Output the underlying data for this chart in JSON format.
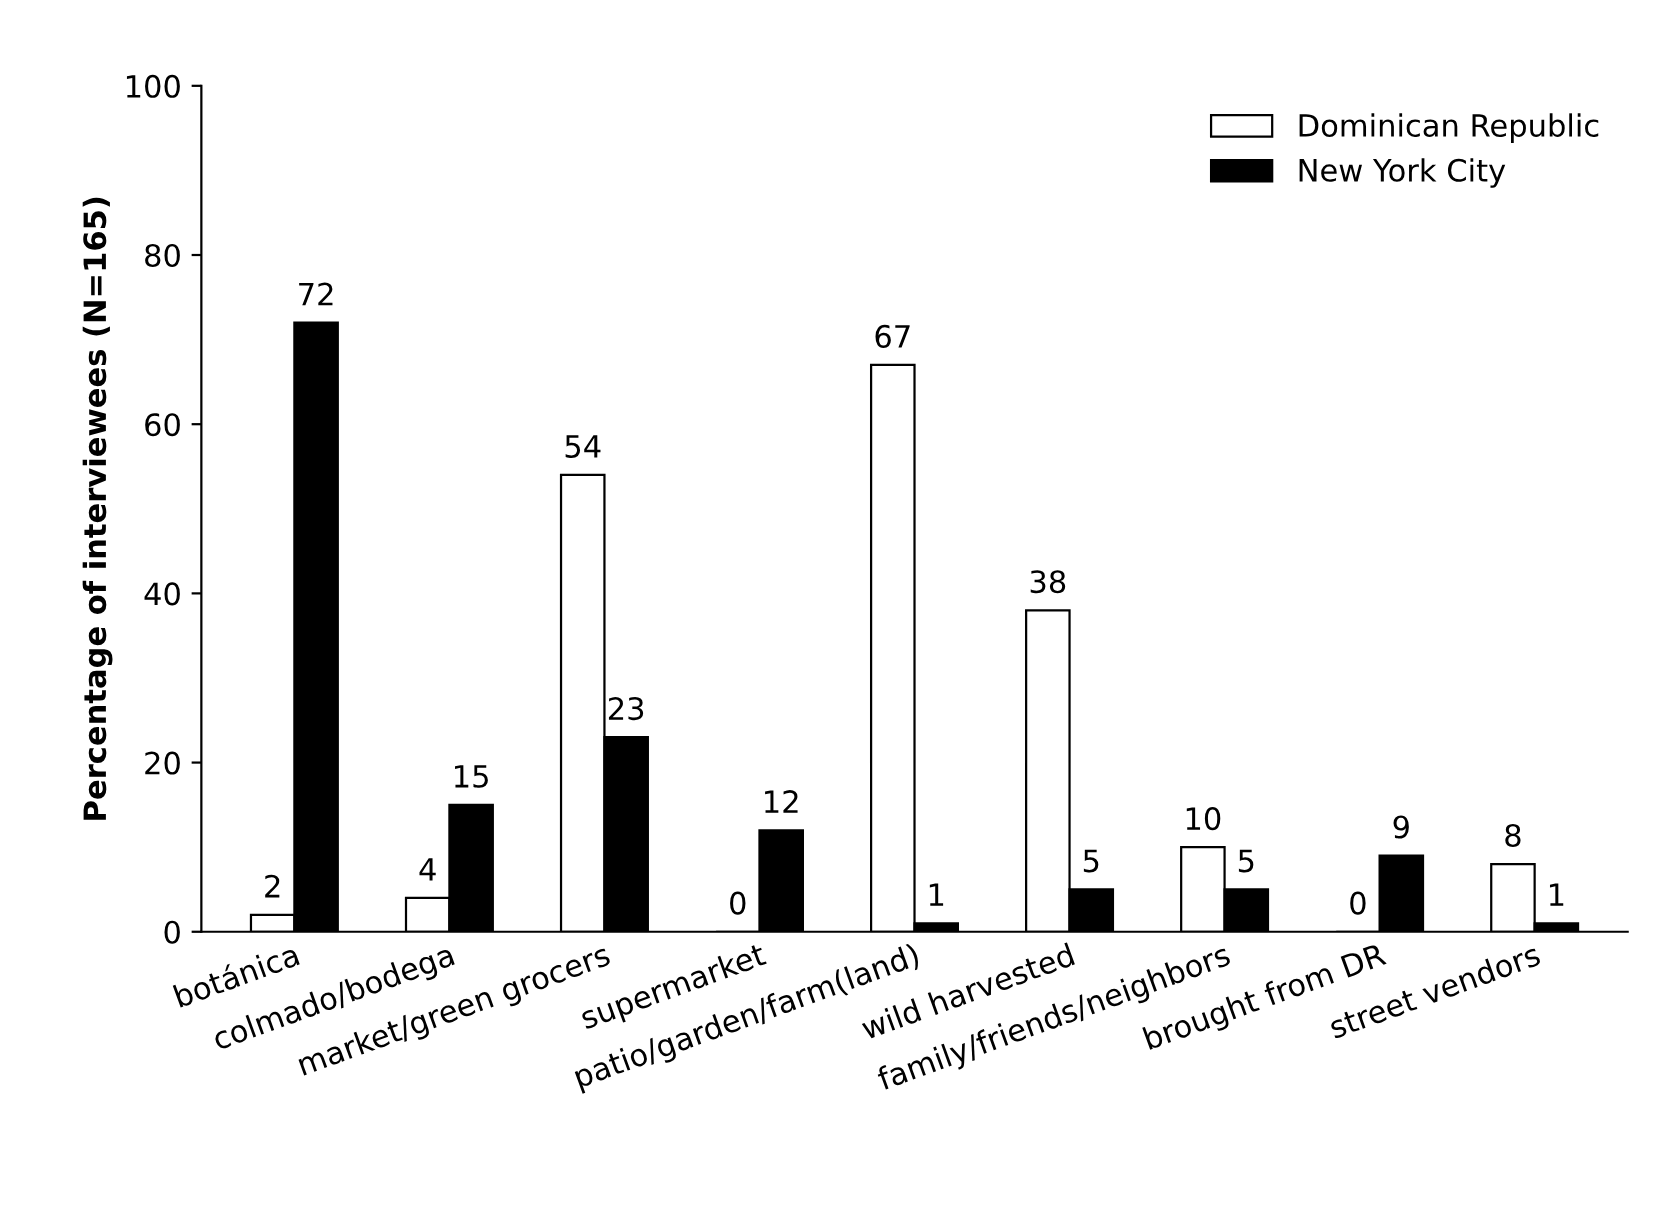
{
  "chart_data": {
    "type": "bar",
    "ylabel": "Percentage of interviewees (N=165)",
    "categories": [
      "botánica",
      "colmado/bodega",
      "market/green grocers",
      "supermarket",
      "patio/garden/farm(land)",
      "wild harvested",
      "family/friends/neighbors",
      "brought from DR",
      "street vendors"
    ],
    "series": [
      {
        "name": "Dominican Republic",
        "color": "#ffffff",
        "values": [
          2,
          4,
          54,
          0,
          67,
          38,
          10,
          0,
          8
        ]
      },
      {
        "name": "New York City",
        "color": "#000000",
        "values": [
          72,
          15,
          23,
          12,
          1,
          5,
          5,
          9,
          1
        ]
      }
    ],
    "ylim": [
      0,
      100
    ],
    "yticks": [
      0,
      20,
      40,
      60,
      80,
      100
    ],
    "data_labels": true,
    "legend": "top right",
    "grid": false
  }
}
